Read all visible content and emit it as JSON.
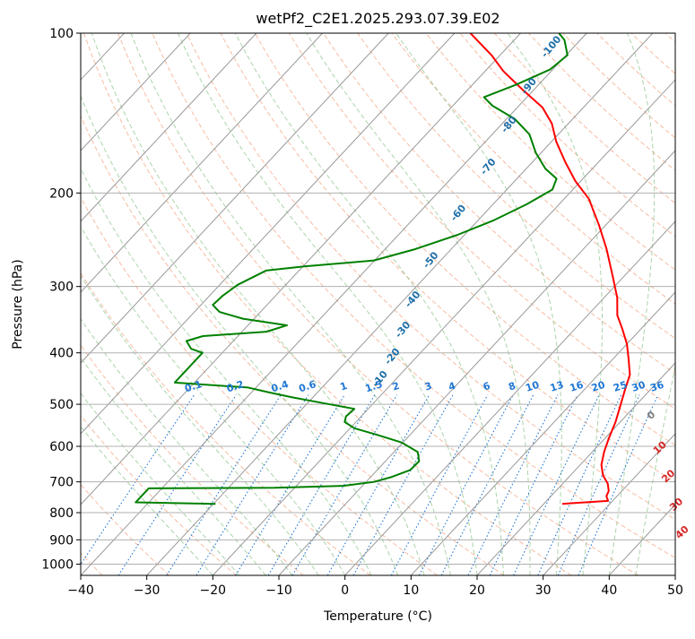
{
  "chart_data": {
    "type": "line",
    "title": "wetPf2_C2E1.2025.293.07.39.E02",
    "xlabel": "Temperature (°C)",
    "ylabel": "Pressure (hPa)",
    "xlim": [
      -40,
      50
    ],
    "ylim": [
      1050,
      100
    ],
    "y_scale": "log",
    "skew_per_decade_c": 75,
    "grid": true,
    "x_ticks": [
      -40,
      -30,
      -20,
      -10,
      0,
      10,
      20,
      30,
      40,
      50
    ],
    "y_ticks": [
      100,
      200,
      300,
      400,
      500,
      600,
      700,
      800,
      900,
      1000
    ],
    "series": [
      {
        "color": "#ff0000",
        "points": [
          {
            "p": 770,
            "t": 22.8
          },
          {
            "p": 760,
            "t": 29.3
          },
          {
            "p": 745,
            "t": 28.4
          },
          {
            "p": 728,
            "t": 28.0
          },
          {
            "p": 705,
            "t": 26.8
          },
          {
            "p": 680,
            "t": 24.9
          },
          {
            "p": 650,
            "t": 23.2
          },
          {
            "p": 615,
            "t": 21.8
          },
          {
            "p": 580,
            "t": 20.6
          },
          {
            "p": 540,
            "t": 19.3
          },
          {
            "p": 505,
            "t": 17.8
          },
          {
            "p": 470,
            "t": 16.2
          },
          {
            "p": 440,
            "t": 14.8
          },
          {
            "p": 410,
            "t": 12.3
          },
          {
            "p": 385,
            "t": 10.0
          },
          {
            "p": 360,
            "t": 7.1
          },
          {
            "p": 340,
            "t": 4.5
          },
          {
            "p": 315,
            "t": 2.0
          },
          {
            "p": 285,
            "t": -2.0
          },
          {
            "p": 255,
            "t": -6.5
          },
          {
            "p": 230,
            "t": -11.0
          },
          {
            "p": 205,
            "t": -16.3
          },
          {
            "p": 190,
            "t": -20.8
          },
          {
            "p": 175,
            "t": -25.0
          },
          {
            "p": 160,
            "t": -29.3
          },
          {
            "p": 148,
            "t": -32.5
          },
          {
            "p": 138,
            "t": -36.2
          },
          {
            "p": 128,
            "t": -41.6
          },
          {
            "p": 118,
            "t": -47.2
          },
          {
            "p": 110,
            "t": -51.3
          },
          {
            "p": 100,
            "t": -57.6
          }
        ]
      },
      {
        "color": "#008000",
        "points": [
          {
            "p": 770,
            "t": -29.7
          },
          {
            "p": 765,
            "t": -42.0
          },
          {
            "p": 720,
            "t": -42.0
          },
          {
            "p": 718,
            "t": -23.0
          },
          {
            "p": 712,
            "t": -12.8
          },
          {
            "p": 700,
            "t": -8.8
          },
          {
            "p": 685,
            "t": -6.8
          },
          {
            "p": 665,
            "t": -5.0
          },
          {
            "p": 640,
            "t": -4.9
          },
          {
            "p": 615,
            "t": -6.4
          },
          {
            "p": 590,
            "t": -10.2
          },
          {
            "p": 570,
            "t": -15.2
          },
          {
            "p": 555,
            "t": -19.3
          },
          {
            "p": 540,
            "t": -21.7
          },
          {
            "p": 527,
            "t": -22.3
          },
          {
            "p": 510,
            "t": -22.1
          },
          {
            "p": 498,
            "t": -27.4
          },
          {
            "p": 485,
            "t": -33.2
          },
          {
            "p": 475,
            "t": -37.3
          },
          {
            "p": 465,
            "t": -41.2
          },
          {
            "p": 455,
            "t": -53.0
          },
          {
            "p": 400,
            "t": -53.0
          },
          {
            "p": 393,
            "t": -55.3
          },
          {
            "p": 380,
            "t": -57.1
          },
          {
            "p": 372,
            "t": -55.3
          },
          {
            "p": 365,
            "t": -46.3
          },
          {
            "p": 355,
            "t": -44.1
          },
          {
            "p": 345,
            "t": -51.7
          },
          {
            "p": 335,
            "t": -56.2
          },
          {
            "p": 325,
            "t": -58.2
          },
          {
            "p": 312,
            "t": -58.0
          },
          {
            "p": 298,
            "t": -57.3
          },
          {
            "p": 280,
            "t": -55.0
          },
          {
            "p": 275,
            "t": -49.8
          },
          {
            "p": 268,
            "t": -40.1
          },
          {
            "p": 255,
            "t": -35.4
          },
          {
            "p": 240,
            "t": -31.1
          },
          {
            "p": 225,
            "t": -27.6
          },
          {
            "p": 210,
            "t": -24.9
          },
          {
            "p": 197,
            "t": -23.1
          },
          {
            "p": 188,
            "t": -24.0
          },
          {
            "p": 180,
            "t": -27.1
          },
          {
            "p": 168,
            "t": -30.8
          },
          {
            "p": 155,
            "t": -34.4
          },
          {
            "p": 145,
            "t": -38.8
          },
          {
            "p": 137,
            "t": -44.0
          },
          {
            "p": 132,
            "t": -46.5
          },
          {
            "p": 125,
            "t": -43.4
          },
          {
            "p": 117,
            "t": -40.4
          },
          {
            "p": 110,
            "t": -39.8
          },
          {
            "p": 103,
            "t": -42.4
          },
          {
            "p": 100,
            "t": -44.2
          }
        ]
      }
    ],
    "mixing_ratio_labels": [
      "0.1",
      "0.2",
      "0.4",
      "0.6",
      "1",
      "1.5",
      "2",
      "3",
      "4",
      "6",
      "8",
      "10",
      "13",
      "16",
      "20",
      "25",
      "30",
      "36"
    ],
    "mixing_ratio_values": [
      0.1,
      0.2,
      0.4,
      0.6,
      1,
      1.5,
      2,
      3,
      4,
      6,
      8,
      10,
      13,
      16,
      20,
      25,
      30,
      36
    ],
    "moist_adiabat_labels": [
      "-100",
      "-90",
      "-80",
      "-70",
      "-60",
      "-50",
      "-40",
      "-30",
      "-20",
      "-10"
    ],
    "moist_adiabat_positions": [
      {
        "t": -42.8,
        "p": 107
      },
      {
        "t": -40.6,
        "p": 127
      },
      {
        "t": -38.2,
        "p": 150
      },
      {
        "t": -35.4,
        "p": 180
      },
      {
        "t": -33.4,
        "p": 220
      },
      {
        "t": -30.9,
        "p": 270
      },
      {
        "t": -28.1,
        "p": 320
      },
      {
        "t": -25.3,
        "p": 365
      },
      {
        "t": -23.1,
        "p": 410
      },
      {
        "t": -21.8,
        "p": 452
      }
    ],
    "wet_bulb_labels": [
      "0",
      "10",
      "20",
      "30",
      "40"
    ],
    "wet_bulb_positions": [
      {
        "t": 24.4,
        "p": 530
      },
      {
        "t": 30.3,
        "p": 610
      },
      {
        "t": 35.6,
        "p": 690
      },
      {
        "t": 40.8,
        "p": 780
      },
      {
        "t": 45.6,
        "p": 880
      }
    ],
    "colors": {
      "temperature": "#ff0000",
      "dewpoint": "#008000",
      "isotherm": "#999999",
      "isobar": "#b0b0b0",
      "dry_adiabat": "#f4a582",
      "moist_adiabat": "#88c288",
      "mixing_ratio": "#1f77d4",
      "moist_label": "#1f6fa8",
      "wet_bulb_label": "#d62728",
      "zero_label": "#808080"
    }
  }
}
